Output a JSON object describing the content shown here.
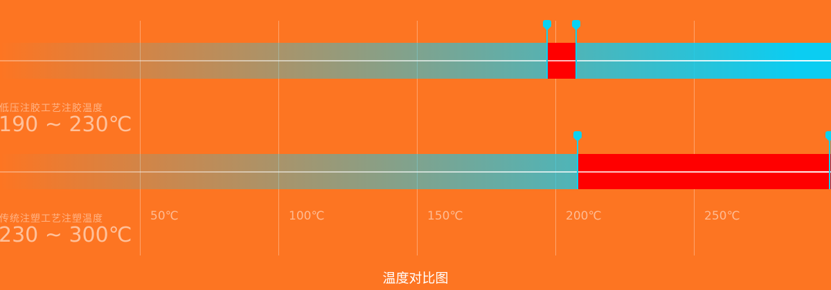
{
  "colors": {
    "background": "#fd7522",
    "bar_cyan": "#0bcdf2",
    "bar_red": "#ff0000",
    "pin_cyan": "#0ad2f2",
    "gridline": "rgba(255,255,255,0.35)",
    "axis_label": "rgba(255,255,255,0.5)",
    "row_name": "rgba(255,255,255,0.45)",
    "row_value": "rgba(255,255,255,0.55)",
    "title_color": "#ffffff"
  },
  "chart_data": {
    "type": "bar",
    "orientation": "horizontal",
    "title": "温度对比图",
    "x_axis": {
      "min": 0,
      "max": 300,
      "unit": "℃",
      "grid": true,
      "ticks": [
        {
          "value": 50,
          "label": "50℃"
        },
        {
          "value": 100,
          "label": "100℃"
        },
        {
          "value": 150,
          "label": "150℃"
        },
        {
          "value": 200,
          "label": "200℃"
        },
        {
          "value": 250,
          "label": "250℃"
        }
      ]
    },
    "series": [
      {
        "name": "低压注胶工艺注胶温度",
        "range_label": "190 ~ 230℃",
        "range": [
          190,
          230
        ],
        "cyan_gradient_span": [
          0,
          300
        ],
        "red_segment": [
          197,
          207.5
        ],
        "markers": [
          197,
          207.5
        ]
      },
      {
        "name": "传统注塑工艺注塑温度",
        "range_label": "230 ~ 300℃",
        "range": [
          230,
          300
        ],
        "cyan_gradient_span": [
          0,
          208
        ],
        "red_segment": [
          208,
          300
        ],
        "markers": [
          208,
          299
        ]
      }
    ]
  }
}
